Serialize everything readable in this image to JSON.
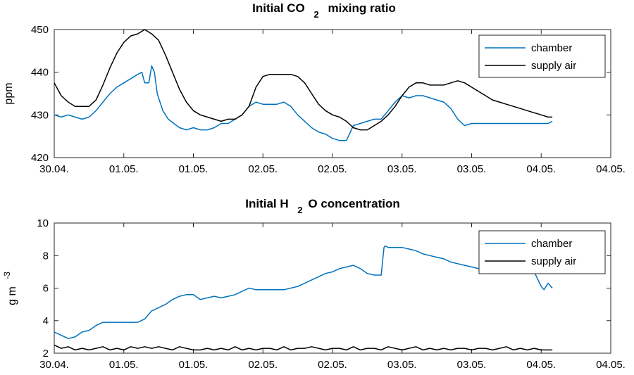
{
  "chart_data": [
    {
      "type": "line",
      "title": {
        "main": "Initial CO",
        "sub": "2",
        "rest": "mixing ratio"
      },
      "ylabel": "ppm",
      "ylim": [
        420,
        450
      ],
      "yticks": [
        "420",
        "430",
        "440",
        "450"
      ],
      "xlim": [
        0,
        4
      ],
      "xtick_values": [
        0,
        0.5,
        1,
        1.5,
        2,
        2.5,
        3,
        3.5,
        4
      ],
      "xtick_labels": [
        "30.04.",
        "01.05.",
        "01.05.",
        "02.05.",
        "02.05.",
        "03.05.",
        "03.05.",
        "04.05.",
        "04.05."
      ],
      "grid": false,
      "legend_position": "top-right",
      "series": [
        {
          "name": "chamber",
          "color": "#0072BD",
          "x": [
            0,
            0.05,
            0.1,
            0.15,
            0.2,
            0.25,
            0.3,
            0.35,
            0.4,
            0.45,
            0.5,
            0.55,
            0.6,
            0.63,
            0.65,
            0.68,
            0.7,
            0.72,
            0.74,
            0.78,
            0.82,
            0.86,
            0.9,
            0.95,
            1.0,
            1.05,
            1.1,
            1.15,
            1.2,
            1.25,
            1.3,
            1.35,
            1.4,
            1.45,
            1.5,
            1.55,
            1.6,
            1.65,
            1.7,
            1.75,
            1.8,
            1.85,
            1.9,
            1.95,
            2.0,
            2.05,
            2.1,
            2.15,
            2.2,
            2.25,
            2.3,
            2.35,
            2.4,
            2.45,
            2.5,
            2.55,
            2.6,
            2.65,
            2.7,
            2.75,
            2.8,
            2.85,
            2.9,
            2.95,
            3.0,
            3.05,
            3.1,
            3.15,
            3.2,
            3.25,
            3.3,
            3.35,
            3.4,
            3.45,
            3.5,
            3.55,
            3.58
          ],
          "y": [
            430,
            429.5,
            430,
            429.5,
            429,
            429.5,
            431,
            433,
            435,
            436.5,
            437.5,
            438.5,
            439.5,
            440,
            437.5,
            437.5,
            441.5,
            440,
            435,
            431,
            429,
            428,
            427,
            426.5,
            427,
            426.5,
            426.5,
            427,
            428,
            428,
            429,
            430,
            432,
            433,
            432.5,
            432.5,
            432.5,
            433,
            432,
            430,
            428.5,
            427,
            426,
            425.5,
            424.5,
            424,
            424,
            427.5,
            428,
            428.5,
            429,
            429,
            431,
            433,
            434.5,
            434,
            434.5,
            434.5,
            434,
            433.5,
            433,
            431.5,
            429,
            427.5,
            428,
            428,
            428,
            428,
            428,
            428,
            428,
            428,
            428,
            428,
            428,
            428,
            428.5
          ]
        },
        {
          "name": "supply air",
          "color": "#000000",
          "x": [
            0,
            0.05,
            0.1,
            0.15,
            0.2,
            0.25,
            0.3,
            0.35,
            0.4,
            0.45,
            0.5,
            0.55,
            0.6,
            0.65,
            0.7,
            0.75,
            0.8,
            0.85,
            0.9,
            0.95,
            1.0,
            1.05,
            1.1,
            1.15,
            1.2,
            1.25,
            1.3,
            1.35,
            1.4,
            1.45,
            1.5,
            1.55,
            1.6,
            1.65,
            1.7,
            1.75,
            1.8,
            1.85,
            1.9,
            1.95,
            2.0,
            2.05,
            2.1,
            2.15,
            2.2,
            2.25,
            2.3,
            2.35,
            2.4,
            2.45,
            2.5,
            2.55,
            2.6,
            2.65,
            2.7,
            2.75,
            2.8,
            2.85,
            2.9,
            2.95,
            3.0,
            3.05,
            3.1,
            3.15,
            3.2,
            3.25,
            3.3,
            3.35,
            3.4,
            3.45,
            3.5,
            3.55,
            3.58
          ],
          "y": [
            437.5,
            434.5,
            433,
            432,
            432,
            432,
            433.5,
            437,
            441,
            444.5,
            447,
            448.5,
            449,
            450,
            449,
            447.5,
            444,
            440,
            436,
            433,
            431,
            430,
            429.5,
            429,
            428.5,
            429,
            429,
            430,
            432,
            436.5,
            439,
            439.5,
            439.5,
            439.5,
            439.5,
            439,
            437.5,
            435,
            432.5,
            431,
            430,
            429.5,
            428.5,
            427,
            426.5,
            426.5,
            427.5,
            428.5,
            430,
            432,
            434.5,
            436.5,
            437.5,
            437.5,
            437,
            437,
            437,
            437.5,
            438,
            437.5,
            436.5,
            435.5,
            434.5,
            433.5,
            433,
            432.5,
            432,
            431.5,
            431,
            430.5,
            430,
            429.5,
            429.5
          ]
        }
      ]
    },
    {
      "type": "line",
      "title": {
        "main": "Initial H",
        "sub": "2",
        "rest": "O concentration"
      },
      "ylabel": "g m",
      "ylabel_sup": "-3",
      "ylim": [
        2,
        10
      ],
      "yticks": [
        "2",
        "4",
        "6",
        "8",
        "10"
      ],
      "xlim": [
        0,
        4
      ],
      "xtick_values": [
        0,
        0.5,
        1,
        1.5,
        2,
        2.5,
        3,
        3.5,
        4
      ],
      "xtick_labels": [
        "30.04.",
        "01.05.",
        "01.05.",
        "02.05.",
        "02.05.",
        "03.05.",
        "03.05.",
        "04.05.",
        "04.05."
      ],
      "grid": false,
      "legend_position": "top-right",
      "series": [
        {
          "name": "chamber",
          "color": "#0072BD",
          "x": [
            0,
            0.05,
            0.1,
            0.15,
            0.2,
            0.25,
            0.3,
            0.35,
            0.4,
            0.45,
            0.5,
            0.55,
            0.6,
            0.65,
            0.7,
            0.75,
            0.8,
            0.85,
            0.9,
            0.95,
            1.0,
            1.05,
            1.1,
            1.15,
            1.2,
            1.25,
            1.3,
            1.35,
            1.4,
            1.45,
            1.5,
            1.55,
            1.6,
            1.65,
            1.7,
            1.75,
            1.8,
            1.85,
            1.9,
            1.95,
            2.0,
            2.05,
            2.1,
            2.15,
            2.2,
            2.25,
            2.3,
            2.35,
            2.37,
            2.38,
            2.4,
            2.45,
            2.5,
            2.55,
            2.6,
            2.65,
            2.7,
            2.75,
            2.8,
            2.85,
            2.9,
            2.95,
            3.0,
            3.05,
            3.1,
            3.15,
            3.2,
            3.25,
            3.3,
            3.35,
            3.4,
            3.45,
            3.5,
            3.52,
            3.55,
            3.58
          ],
          "y": [
            3.3,
            3.1,
            2.9,
            3.0,
            3.3,
            3.4,
            3.7,
            3.9,
            3.9,
            3.9,
            3.9,
            3.9,
            3.9,
            4.1,
            4.6,
            4.8,
            5.0,
            5.3,
            5.5,
            5.6,
            5.6,
            5.3,
            5.4,
            5.5,
            5.4,
            5.5,
            5.6,
            5.8,
            6.0,
            5.9,
            5.9,
            5.9,
            5.9,
            5.9,
            6.0,
            6.1,
            6.3,
            6.5,
            6.7,
            6.9,
            7.0,
            7.2,
            7.3,
            7.4,
            7.2,
            6.9,
            6.8,
            6.8,
            8.5,
            8.6,
            8.5,
            8.5,
            8.5,
            8.4,
            8.3,
            8.1,
            8.0,
            7.9,
            7.8,
            7.6,
            7.5,
            7.4,
            7.3,
            7.2,
            7.1,
            7.0,
            7.0,
            7.0,
            7.1,
            7.1,
            7.0,
            7.0,
            6.1,
            5.9,
            6.3,
            6.0
          ]
        },
        {
          "name": "supply air",
          "color": "#000000",
          "x": [
            0,
            0.05,
            0.1,
            0.15,
            0.2,
            0.25,
            0.3,
            0.35,
            0.4,
            0.45,
            0.5,
            0.55,
            0.6,
            0.65,
            0.7,
            0.75,
            0.8,
            0.85,
            0.9,
            0.95,
            1.0,
            1.05,
            1.1,
            1.15,
            1.2,
            1.25,
            1.3,
            1.35,
            1.4,
            1.45,
            1.5,
            1.55,
            1.6,
            1.65,
            1.7,
            1.75,
            1.8,
            1.85,
            1.9,
            1.95,
            2.0,
            2.05,
            2.1,
            2.15,
            2.2,
            2.25,
            2.3,
            2.35,
            2.4,
            2.45,
            2.5,
            2.55,
            2.6,
            2.65,
            2.7,
            2.75,
            2.8,
            2.85,
            2.9,
            2.95,
            3.0,
            3.05,
            3.1,
            3.15,
            3.2,
            3.25,
            3.3,
            3.35,
            3.4,
            3.45,
            3.5,
            3.55,
            3.58
          ],
          "y": [
            2.5,
            2.3,
            2.4,
            2.2,
            2.3,
            2.2,
            2.3,
            2.4,
            2.2,
            2.3,
            2.2,
            2.4,
            2.3,
            2.4,
            2.3,
            2.4,
            2.3,
            2.2,
            2.4,
            2.3,
            2.2,
            2.2,
            2.3,
            2.2,
            2.3,
            2.2,
            2.4,
            2.2,
            2.3,
            2.2,
            2.3,
            2.3,
            2.2,
            2.4,
            2.2,
            2.3,
            2.3,
            2.4,
            2.3,
            2.2,
            2.3,
            2.3,
            2.2,
            2.4,
            2.2,
            2.3,
            2.3,
            2.2,
            2.4,
            2.3,
            2.2,
            2.3,
            2.4,
            2.2,
            2.3,
            2.2,
            2.3,
            2.2,
            2.3,
            2.3,
            2.2,
            2.3,
            2.3,
            2.2,
            2.3,
            2.4,
            2.2,
            2.3,
            2.2,
            2.3,
            2.2,
            2.2,
            2.2
          ]
        }
      ]
    }
  ]
}
